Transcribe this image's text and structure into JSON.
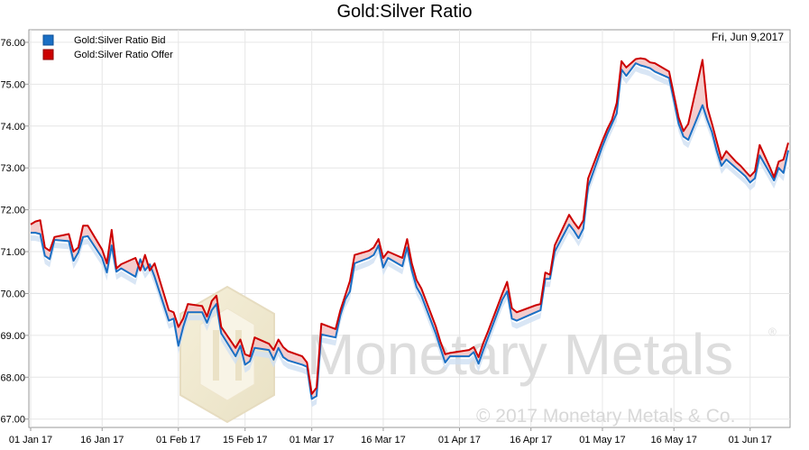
{
  "chart_data": {
    "type": "line",
    "title": "Gold:Silver Ratio",
    "date_label": "Fri, Jun 9,2017",
    "xlabel": "",
    "ylabel": "",
    "ylim": [
      66.8,
      76.3
    ],
    "y_ticks": [
      "67.00",
      "68.00",
      "69.00",
      "70.00",
      "71.00",
      "72.00",
      "73.00",
      "74.00",
      "75.00",
      "76.00"
    ],
    "x_range": [
      "2017-01-01",
      "2017-06-09"
    ],
    "x_ticks": [
      {
        "date": "2017-01-01",
        "label": "01 Jan 17"
      },
      {
        "date": "2017-01-16",
        "label": "16 Jan 17"
      },
      {
        "date": "2017-02-01",
        "label": "01 Feb 17"
      },
      {
        "date": "2017-02-15",
        "label": "15 Feb 17"
      },
      {
        "date": "2017-03-01",
        "label": "01 Mar 17"
      },
      {
        "date": "2017-03-16",
        "label": "16 Mar 17"
      },
      {
        "date": "2017-04-01",
        "label": "01 Apr 17"
      },
      {
        "date": "2017-04-16",
        "label": "16 Apr 17"
      },
      {
        "date": "2017-05-01",
        "label": "01 May 17"
      },
      {
        "date": "2017-05-16",
        "label": "16 May 17"
      },
      {
        "date": "2017-06-01",
        "label": "01 Jun 17"
      }
    ],
    "grid": true,
    "legend_position": "top-left",
    "watermark": {
      "name": "Monetary Metals",
      "copyright": "© 2017 Monetary Metals & Co."
    },
    "series": [
      {
        "name": "Gold:Silver Ratio Bid",
        "color": "#1a6fc4",
        "points": [
          [
            "2017-01-01",
            71.45
          ],
          [
            "2017-01-02",
            71.45
          ],
          [
            "2017-01-03",
            71.42
          ],
          [
            "2017-01-04",
            70.9
          ],
          [
            "2017-01-05",
            70.82
          ],
          [
            "2017-01-06",
            71.28
          ],
          [
            "2017-01-09",
            71.25
          ],
          [
            "2017-01-10",
            70.78
          ],
          [
            "2017-01-11",
            70.98
          ],
          [
            "2017-01-12",
            71.35
          ],
          [
            "2017-01-13",
            71.37
          ],
          [
            "2017-01-16",
            70.85
          ],
          [
            "2017-01-17",
            70.5
          ],
          [
            "2017-01-18",
            71.15
          ],
          [
            "2017-01-19",
            70.52
          ],
          [
            "2017-01-20",
            70.6
          ],
          [
            "2017-01-23",
            70.4
          ],
          [
            "2017-01-24",
            70.82
          ],
          [
            "2017-01-25",
            70.55
          ],
          [
            "2017-01-26",
            70.7
          ],
          [
            "2017-01-27",
            70.4
          ],
          [
            "2017-01-30",
            69.35
          ],
          [
            "2017-01-31",
            69.4
          ],
          [
            "2017-02-01",
            68.75
          ],
          [
            "2017-02-02",
            69.2
          ],
          [
            "2017-02-03",
            69.55
          ],
          [
            "2017-02-06",
            69.55
          ],
          [
            "2017-02-07",
            69.3
          ],
          [
            "2017-02-08",
            69.6
          ],
          [
            "2017-02-09",
            69.75
          ],
          [
            "2017-02-10",
            69.05
          ],
          [
            "2017-02-13",
            68.5
          ],
          [
            "2017-02-14",
            68.75
          ],
          [
            "2017-02-15",
            68.3
          ],
          [
            "2017-02-16",
            68.38
          ],
          [
            "2017-02-17",
            68.7
          ],
          [
            "2017-02-20",
            68.65
          ],
          [
            "2017-02-21",
            68.42
          ],
          [
            "2017-02-22",
            68.7
          ],
          [
            "2017-02-23",
            68.48
          ],
          [
            "2017-02-24",
            68.4
          ],
          [
            "2017-02-27",
            68.3
          ],
          [
            "2017-02-28",
            68.25
          ],
          [
            "2017-03-01",
            67.48
          ],
          [
            "2017-03-02",
            67.55
          ],
          [
            "2017-03-03",
            69.02
          ],
          [
            "2017-03-06",
            68.95
          ],
          [
            "2017-03-07",
            69.48
          ],
          [
            "2017-03-08",
            69.85
          ],
          [
            "2017-03-09",
            70.05
          ],
          [
            "2017-03-10",
            70.72
          ],
          [
            "2017-03-13",
            70.85
          ],
          [
            "2017-03-14",
            70.92
          ],
          [
            "2017-03-15",
            71.15
          ],
          [
            "2017-03-16",
            70.62
          ],
          [
            "2017-03-17",
            70.85
          ],
          [
            "2017-03-20",
            70.65
          ],
          [
            "2017-03-21",
            71.1
          ],
          [
            "2017-03-22",
            70.55
          ],
          [
            "2017-03-23",
            70.15
          ],
          [
            "2017-03-24",
            69.95
          ],
          [
            "2017-03-27",
            69.05
          ],
          [
            "2017-03-28",
            68.7
          ],
          [
            "2017-03-29",
            68.35
          ],
          [
            "2017-03-30",
            68.5
          ],
          [
            "2017-04-03",
            68.5
          ],
          [
            "2017-04-04",
            68.6
          ],
          [
            "2017-04-05",
            68.32
          ],
          [
            "2017-04-06",
            68.65
          ],
          [
            "2017-04-07",
            68.95
          ],
          [
            "2017-04-10",
            69.85
          ],
          [
            "2017-04-11",
            70.05
          ],
          [
            "2017-04-12",
            69.4
          ],
          [
            "2017-04-13",
            69.35
          ],
          [
            "2017-04-17",
            69.55
          ],
          [
            "2017-04-18",
            69.6
          ],
          [
            "2017-04-19",
            70.35
          ],
          [
            "2017-04-20",
            70.35
          ],
          [
            "2017-04-21",
            71.0
          ],
          [
            "2017-04-24",
            71.65
          ],
          [
            "2017-04-25",
            71.5
          ],
          [
            "2017-04-26",
            71.32
          ],
          [
            "2017-04-27",
            71.55
          ],
          [
            "2017-04-28",
            72.55
          ],
          [
            "2017-05-01",
            73.52
          ],
          [
            "2017-05-02",
            73.8
          ],
          [
            "2017-05-03",
            74.05
          ],
          [
            "2017-05-04",
            74.3
          ],
          [
            "2017-05-05",
            75.35
          ],
          [
            "2017-05-06",
            75.2
          ],
          [
            "2017-05-08",
            75.5
          ],
          [
            "2017-05-09",
            75.45
          ],
          [
            "2017-05-10",
            75.42
          ],
          [
            "2017-05-11",
            75.38
          ],
          [
            "2017-05-12",
            75.3
          ],
          [
            "2017-05-15",
            75.15
          ],
          [
            "2017-05-16",
            74.62
          ],
          [
            "2017-05-17",
            74.05
          ],
          [
            "2017-05-18",
            73.75
          ],
          [
            "2017-05-19",
            73.67
          ],
          [
            "2017-05-22",
            74.5
          ],
          [
            "2017-05-23",
            74.15
          ],
          [
            "2017-05-24",
            73.85
          ],
          [
            "2017-05-25",
            73.4
          ],
          [
            "2017-05-26",
            73.05
          ],
          [
            "2017-05-27",
            73.2
          ],
          [
            "2017-05-29",
            73.0
          ],
          [
            "2017-05-30",
            72.9
          ],
          [
            "2017-05-31",
            72.8
          ],
          [
            "2017-06-01",
            72.65
          ],
          [
            "2017-06-02",
            72.75
          ],
          [
            "2017-06-03",
            73.3
          ],
          [
            "2017-06-05",
            72.9
          ],
          [
            "2017-06-06",
            72.7
          ],
          [
            "2017-06-07",
            73.0
          ],
          [
            "2017-06-08",
            72.88
          ],
          [
            "2017-06-09",
            73.42
          ]
        ]
      },
      {
        "name": "Gold:Silver Ratio Offer",
        "color": "#cc0000",
        "points": [
          [
            "2017-01-01",
            71.65
          ],
          [
            "2017-01-02",
            71.72
          ],
          [
            "2017-01-03",
            71.75
          ],
          [
            "2017-01-04",
            71.1
          ],
          [
            "2017-01-05",
            71.02
          ],
          [
            "2017-01-06",
            71.35
          ],
          [
            "2017-01-09",
            71.42
          ],
          [
            "2017-01-10",
            71.0
          ],
          [
            "2017-01-11",
            71.1
          ],
          [
            "2017-01-12",
            71.62
          ],
          [
            "2017-01-13",
            71.62
          ],
          [
            "2017-01-16",
            71.05
          ],
          [
            "2017-01-17",
            70.72
          ],
          [
            "2017-01-18",
            71.52
          ],
          [
            "2017-01-19",
            70.6
          ],
          [
            "2017-01-20",
            70.7
          ],
          [
            "2017-01-23",
            70.85
          ],
          [
            "2017-01-24",
            70.55
          ],
          [
            "2017-01-25",
            70.92
          ],
          [
            "2017-01-26",
            70.55
          ],
          [
            "2017-01-27",
            70.72
          ],
          [
            "2017-01-30",
            69.6
          ],
          [
            "2017-01-31",
            69.55
          ],
          [
            "2017-02-01",
            69.2
          ],
          [
            "2017-02-02",
            69.4
          ],
          [
            "2017-02-03",
            69.75
          ],
          [
            "2017-02-06",
            69.7
          ],
          [
            "2017-02-07",
            69.45
          ],
          [
            "2017-02-08",
            69.82
          ],
          [
            "2017-02-09",
            69.95
          ],
          [
            "2017-02-10",
            69.2
          ],
          [
            "2017-02-13",
            68.7
          ],
          [
            "2017-02-14",
            68.9
          ],
          [
            "2017-02-15",
            68.55
          ],
          [
            "2017-02-16",
            68.5
          ],
          [
            "2017-02-17",
            68.95
          ],
          [
            "2017-02-20",
            68.8
          ],
          [
            "2017-02-21",
            68.65
          ],
          [
            "2017-02-22",
            68.9
          ],
          [
            "2017-02-23",
            68.72
          ],
          [
            "2017-02-24",
            68.62
          ],
          [
            "2017-02-27",
            68.5
          ],
          [
            "2017-02-28",
            68.35
          ],
          [
            "2017-03-01",
            67.6
          ],
          [
            "2017-03-02",
            67.75
          ],
          [
            "2017-03-03",
            69.28
          ],
          [
            "2017-03-06",
            69.15
          ],
          [
            "2017-03-07",
            69.6
          ],
          [
            "2017-03-08",
            69.95
          ],
          [
            "2017-03-09",
            70.3
          ],
          [
            "2017-03-10",
            70.92
          ],
          [
            "2017-03-13",
            71.02
          ],
          [
            "2017-03-14",
            71.1
          ],
          [
            "2017-03-15",
            71.3
          ],
          [
            "2017-03-16",
            70.85
          ],
          [
            "2017-03-17",
            71.0
          ],
          [
            "2017-03-20",
            70.85
          ],
          [
            "2017-03-21",
            71.3
          ],
          [
            "2017-03-22",
            70.72
          ],
          [
            "2017-03-23",
            70.32
          ],
          [
            "2017-03-24",
            70.12
          ],
          [
            "2017-03-27",
            69.22
          ],
          [
            "2017-03-28",
            68.85
          ],
          [
            "2017-03-29",
            68.55
          ],
          [
            "2017-03-30",
            68.58
          ],
          [
            "2017-04-03",
            68.65
          ],
          [
            "2017-04-04",
            68.72
          ],
          [
            "2017-04-05",
            68.48
          ],
          [
            "2017-04-06",
            68.82
          ],
          [
            "2017-04-07",
            69.1
          ],
          [
            "2017-04-10",
            70.0
          ],
          [
            "2017-04-11",
            70.28
          ],
          [
            "2017-04-12",
            69.65
          ],
          [
            "2017-04-13",
            69.55
          ],
          [
            "2017-04-17",
            69.72
          ],
          [
            "2017-04-18",
            69.75
          ],
          [
            "2017-04-19",
            70.5
          ],
          [
            "2017-04-20",
            70.45
          ],
          [
            "2017-04-21",
            71.15
          ],
          [
            "2017-04-24",
            71.88
          ],
          [
            "2017-04-25",
            71.7
          ],
          [
            "2017-04-26",
            71.55
          ],
          [
            "2017-04-27",
            71.75
          ],
          [
            "2017-04-28",
            72.75
          ],
          [
            "2017-05-01",
            73.65
          ],
          [
            "2017-05-02",
            73.92
          ],
          [
            "2017-05-03",
            74.15
          ],
          [
            "2017-05-04",
            74.55
          ],
          [
            "2017-05-05",
            75.55
          ],
          [
            "2017-05-06",
            75.4
          ],
          [
            "2017-05-08",
            75.6
          ],
          [
            "2017-05-09",
            75.62
          ],
          [
            "2017-05-10",
            75.6
          ],
          [
            "2017-05-11",
            75.52
          ],
          [
            "2017-05-12",
            75.5
          ],
          [
            "2017-05-15",
            75.3
          ],
          [
            "2017-05-16",
            74.75
          ],
          [
            "2017-05-17",
            74.2
          ],
          [
            "2017-05-18",
            73.88
          ],
          [
            "2017-05-19",
            74.05
          ],
          [
            "2017-05-22",
            75.58
          ],
          [
            "2017-05-23",
            74.45
          ],
          [
            "2017-05-24",
            74.05
          ],
          [
            "2017-05-25",
            73.62
          ],
          [
            "2017-05-26",
            73.2
          ],
          [
            "2017-05-27",
            73.4
          ],
          [
            "2017-05-29",
            73.15
          ],
          [
            "2017-05-30",
            73.05
          ],
          [
            "2017-05-31",
            72.92
          ],
          [
            "2017-06-01",
            72.8
          ],
          [
            "2017-06-02",
            72.92
          ],
          [
            "2017-06-03",
            73.55
          ],
          [
            "2017-06-05",
            73.05
          ],
          [
            "2017-06-06",
            72.78
          ],
          [
            "2017-06-07",
            73.15
          ],
          [
            "2017-06-08",
            73.2
          ],
          [
            "2017-06-09",
            73.6
          ]
        ]
      }
    ]
  }
}
